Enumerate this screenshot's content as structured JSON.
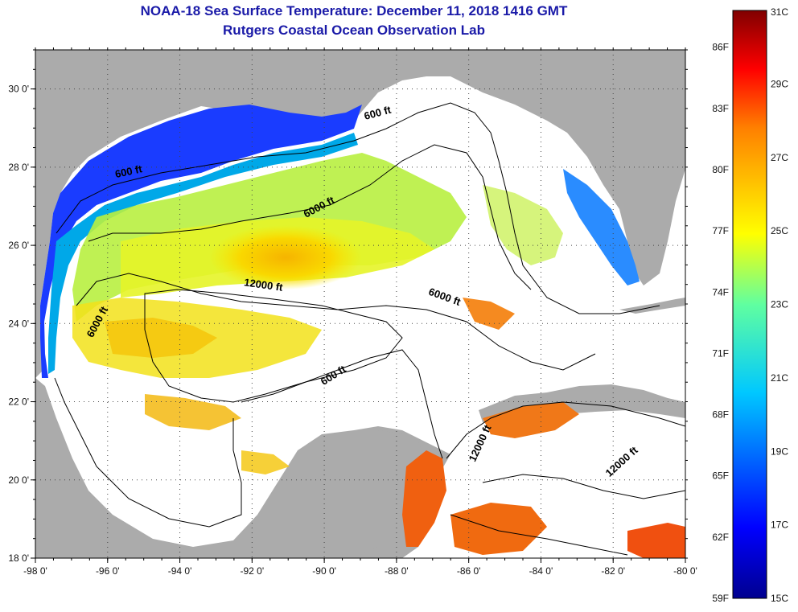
{
  "title": "NOAA-18 Sea Surface Temperature:  December 11, 2018 1416 GMT",
  "subtitle": "Rutgers Coastal Ocean Observation Lab",
  "map": {
    "lon_range": [
      -98,
      -80
    ],
    "lat_range": [
      18,
      31
    ],
    "x_ticks": [
      "-98 0'",
      "-96 0'",
      "-94 0'",
      "-92 0'",
      "-90 0'",
      "-88 0'",
      "-86 0'",
      "-84 0'",
      "-82 0'",
      "-80 0'"
    ],
    "y_ticks": [
      "30 0'",
      "28 0'",
      "26 0'",
      "24 0'",
      "22 0'",
      "20 0'",
      "18 0'"
    ],
    "contour_labels": [
      {
        "text": "600 ft",
        "lon": -95.4,
        "lat": 27.8,
        "angle": -12
      },
      {
        "text": "600 ft",
        "lon": -88.5,
        "lat": 29.3,
        "angle": -15
      },
      {
        "text": "6000 ft",
        "lon": -90.1,
        "lat": 26.9,
        "angle": -28
      },
      {
        "text": "12000 ft",
        "lon": -91.7,
        "lat": 24.9,
        "angle": 8
      },
      {
        "text": "6000 ft",
        "lon": -86.7,
        "lat": 24.6,
        "angle": 20
      },
      {
        "text": "6000 ft",
        "lon": -96.2,
        "lat": 24.0,
        "angle": -62
      },
      {
        "text": "600 ft",
        "lon": -89.7,
        "lat": 22.6,
        "angle": -32
      },
      {
        "text": "12000 ft",
        "lon": -85.6,
        "lat": 20.9,
        "angle": -65
      },
      {
        "text": "12000 ft",
        "lon": -81.7,
        "lat": 20.4,
        "angle": -42
      }
    ],
    "colors": {
      "land": "#ababab",
      "ocean_missing": "#ffffff",
      "grid": "#444444"
    }
  },
  "colorbar": {
    "fahrenheit": [
      "86F",
      "83F",
      "80F",
      "77F",
      "74F",
      "71F",
      "68F",
      "65F",
      "62F",
      "59F"
    ],
    "celsius": [
      "31C",
      "29C",
      "27C",
      "25C",
      "23C",
      "21C",
      "19C",
      "17C",
      "15C"
    ],
    "range_c": [
      15,
      31
    ]
  }
}
